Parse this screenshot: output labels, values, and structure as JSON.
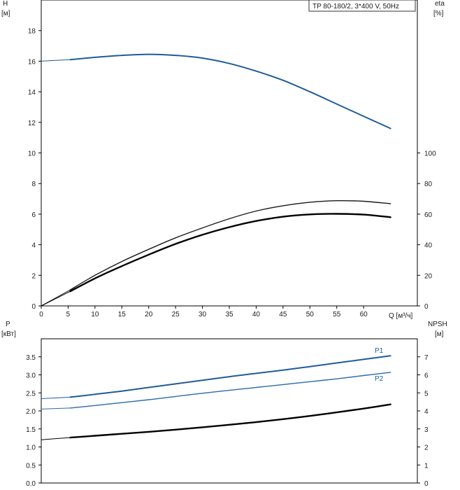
{
  "chart_data": [
    {
      "type": "line",
      "label_box": "TP 80-180/2, 3*400 V, 50Hz",
      "xlabel": "Q [м³/ч]",
      "xlim": [
        0,
        70
      ],
      "xticks": [
        0,
        5,
        10,
        15,
        20,
        25,
        30,
        35,
        40,
        45,
        50,
        55,
        60
      ],
      "ylabel": "H",
      "ylabel_unit": "[м]",
      "ylim": [
        0,
        20
      ],
      "yticks": [
        0,
        2,
        4,
        6,
        8,
        10,
        12,
        14,
        16,
        18
      ],
      "y2label": "eta",
      "y2label_unit": "[%]",
      "y2lim": [
        0,
        200
      ],
      "y2ticks": [
        0,
        20,
        40,
        60,
        80,
        100
      ],
      "grid": true,
      "series": [
        {
          "axis": "H",
          "color": "#1f5c99",
          "x": [
            0,
            5.4,
            10,
            15,
            20,
            25,
            30,
            35,
            40,
            45,
            50,
            55,
            60,
            65
          ],
          "y": [
            16.0,
            16.1,
            16.25,
            16.38,
            16.45,
            16.38,
            16.2,
            15.85,
            15.35,
            14.75,
            14.0,
            13.2,
            12.4,
            11.6
          ]
        },
        {
          "axis": "eta",
          "color": "#1a1a1a",
          "x": [
            0,
            5.4,
            10,
            15,
            20,
            25,
            30,
            35,
            40,
            45,
            50,
            55,
            60,
            65
          ],
          "y": [
            0,
            10.5,
            20,
            29,
            37,
            44.5,
            51,
            57,
            62,
            65.5,
            67.8,
            68.8,
            68.4,
            66.8
          ]
        },
        {
          "axis": "eta",
          "color": "#000000",
          "x": [
            0,
            5.4,
            10,
            15,
            20,
            25,
            30,
            35,
            40,
            45,
            50,
            55,
            60,
            65
          ],
          "y": [
            0,
            9.5,
            18,
            26,
            33.5,
            40.5,
            46.5,
            51.5,
            55.5,
            58.3,
            59.8,
            60.2,
            59.7,
            58
          ]
        }
      ]
    },
    {
      "type": "line",
      "xlim": [
        0,
        70
      ],
      "ylabel": "P",
      "ylabel_unit": "[кВт]",
      "ylim": [
        0,
        4.0
      ],
      "yticks": [
        "0.0",
        "0.5",
        "1.0",
        "1.5",
        "2.0",
        "2.5",
        "3.0",
        "3.5"
      ],
      "y2label": "NPSH",
      "y2label_unit": "[м]",
      "y2lim": [
        0,
        8
      ],
      "y2ticks": [
        0,
        1,
        2,
        3,
        4,
        5,
        6,
        7
      ],
      "grid": true,
      "series": [
        {
          "name": "P1",
          "axis": "P",
          "color": "#1f5c99",
          "x": [
            0,
            5.4,
            10,
            15,
            20,
            25,
            30,
            35,
            40,
            45,
            50,
            55,
            60,
            65
          ],
          "y": [
            2.34,
            2.38,
            2.46,
            2.55,
            2.65,
            2.75,
            2.85,
            2.95,
            3.04,
            3.13,
            3.23,
            3.33,
            3.43,
            3.53
          ]
        },
        {
          "name": "P2",
          "axis": "P",
          "color": "#2a6aaa",
          "x": [
            0,
            5.4,
            10,
            15,
            20,
            25,
            30,
            35,
            40,
            45,
            50,
            55,
            60,
            65
          ],
          "y": [
            2.05,
            2.08,
            2.15,
            2.23,
            2.31,
            2.4,
            2.49,
            2.57,
            2.65,
            2.73,
            2.81,
            2.89,
            2.98,
            3.07
          ]
        },
        {
          "axis": "NPSH",
          "color": "#000000",
          "x": [
            0,
            5.4,
            10,
            15,
            20,
            25,
            30,
            35,
            40,
            45,
            50,
            55,
            60,
            65
          ],
          "y": [
            2.4,
            2.52,
            2.62,
            2.73,
            2.84,
            2.96,
            3.09,
            3.23,
            3.38,
            3.54,
            3.72,
            3.92,
            4.13,
            4.36
          ]
        }
      ]
    }
  ]
}
